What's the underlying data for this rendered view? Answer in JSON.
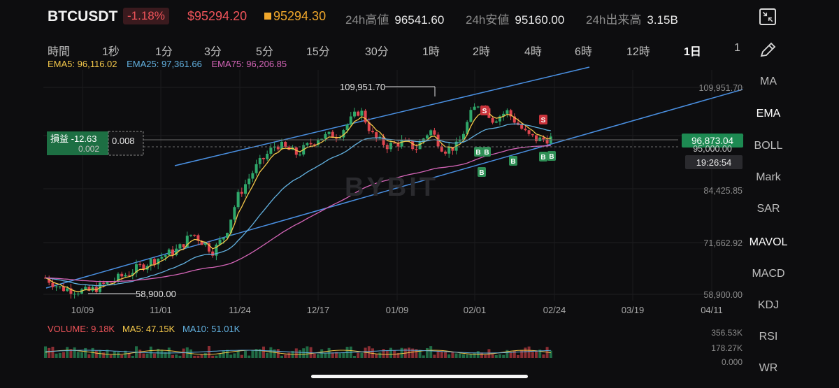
{
  "header": {
    "symbol": "BTCUSDT",
    "change": "-1.18%",
    "last_price": "$95294.20",
    "mark_price": "95294.30",
    "high_label": "24h高値",
    "high_value": "96541.60",
    "low_label": "24h安値",
    "low_value": "95160.00",
    "volume_label": "24h出来高",
    "volume_value": "3.15B"
  },
  "timeframes": [
    "時間",
    "1秒",
    "1分",
    "3分",
    "5分",
    "15分",
    "30分",
    "1時",
    "2時",
    "4時",
    "6時",
    "12時",
    "1日",
    "1"
  ],
  "active_timeframe_index": 12,
  "ema_legend": {
    "ema5": "EMA5: 96,116.02",
    "ema25": "EMA25: 97,361.66",
    "ema75": "EMA75: 96,206.85"
  },
  "side_menu": [
    "MA",
    "EMA",
    "BOLL",
    "Mark",
    "SAR",
    "MAVOL",
    "MACD",
    "KDJ",
    "RSI",
    "WR"
  ],
  "active_side_indices": [
    1,
    5
  ],
  "position": {
    "pnl_label": "損益 -12.63",
    "qty": "0.008",
    "hidden_label": "0.002"
  },
  "price_badges": {
    "current": "96,873.04",
    "line2": "95,000.00",
    "countdown": "19:26:54"
  },
  "annotations": {
    "high": "109,951.70",
    "low": "58,900.00"
  },
  "volume_legend": {
    "vol": "VOLUME: 9.18K",
    "ma5": "MA5: 47.15K",
    "ma10": "MA10: 51.01K"
  },
  "colors": {
    "up": "#2fa86a",
    "down": "#e0464f",
    "ema5": "#f4c84a",
    "ema25": "#62b1e0",
    "ema75": "#d565b8",
    "trend": "#4a90e2"
  },
  "chart_data": {
    "type": "candlestick",
    "price_axis_ticks": [
      "109,951.70",
      "84,425.85",
      "71,662.92",
      "58,900.00"
    ],
    "volume_axis_ticks": [
      "356.53K",
      "178.27K",
      "0.000"
    ],
    "date_ticks": [
      "10/09",
      "11/01",
      "11/24",
      "12/17",
      "01/09",
      "02/01",
      "02/24",
      "03/19",
      "04/11"
    ],
    "ylim": [
      58900,
      109951.7
    ],
    "trades": [
      {
        "label": "B",
        "date": "02/01"
      },
      {
        "label": "B",
        "date": "02/03"
      },
      {
        "label": "B",
        "date": "02/02"
      },
      {
        "label": "B",
        "date": "02/12"
      },
      {
        "label": "S",
        "date": "02/05"
      },
      {
        "label": "S",
        "date": "02/21"
      },
      {
        "label": "B",
        "date": "02/22"
      },
      {
        "label": "B",
        "date": "02/24"
      }
    ]
  }
}
